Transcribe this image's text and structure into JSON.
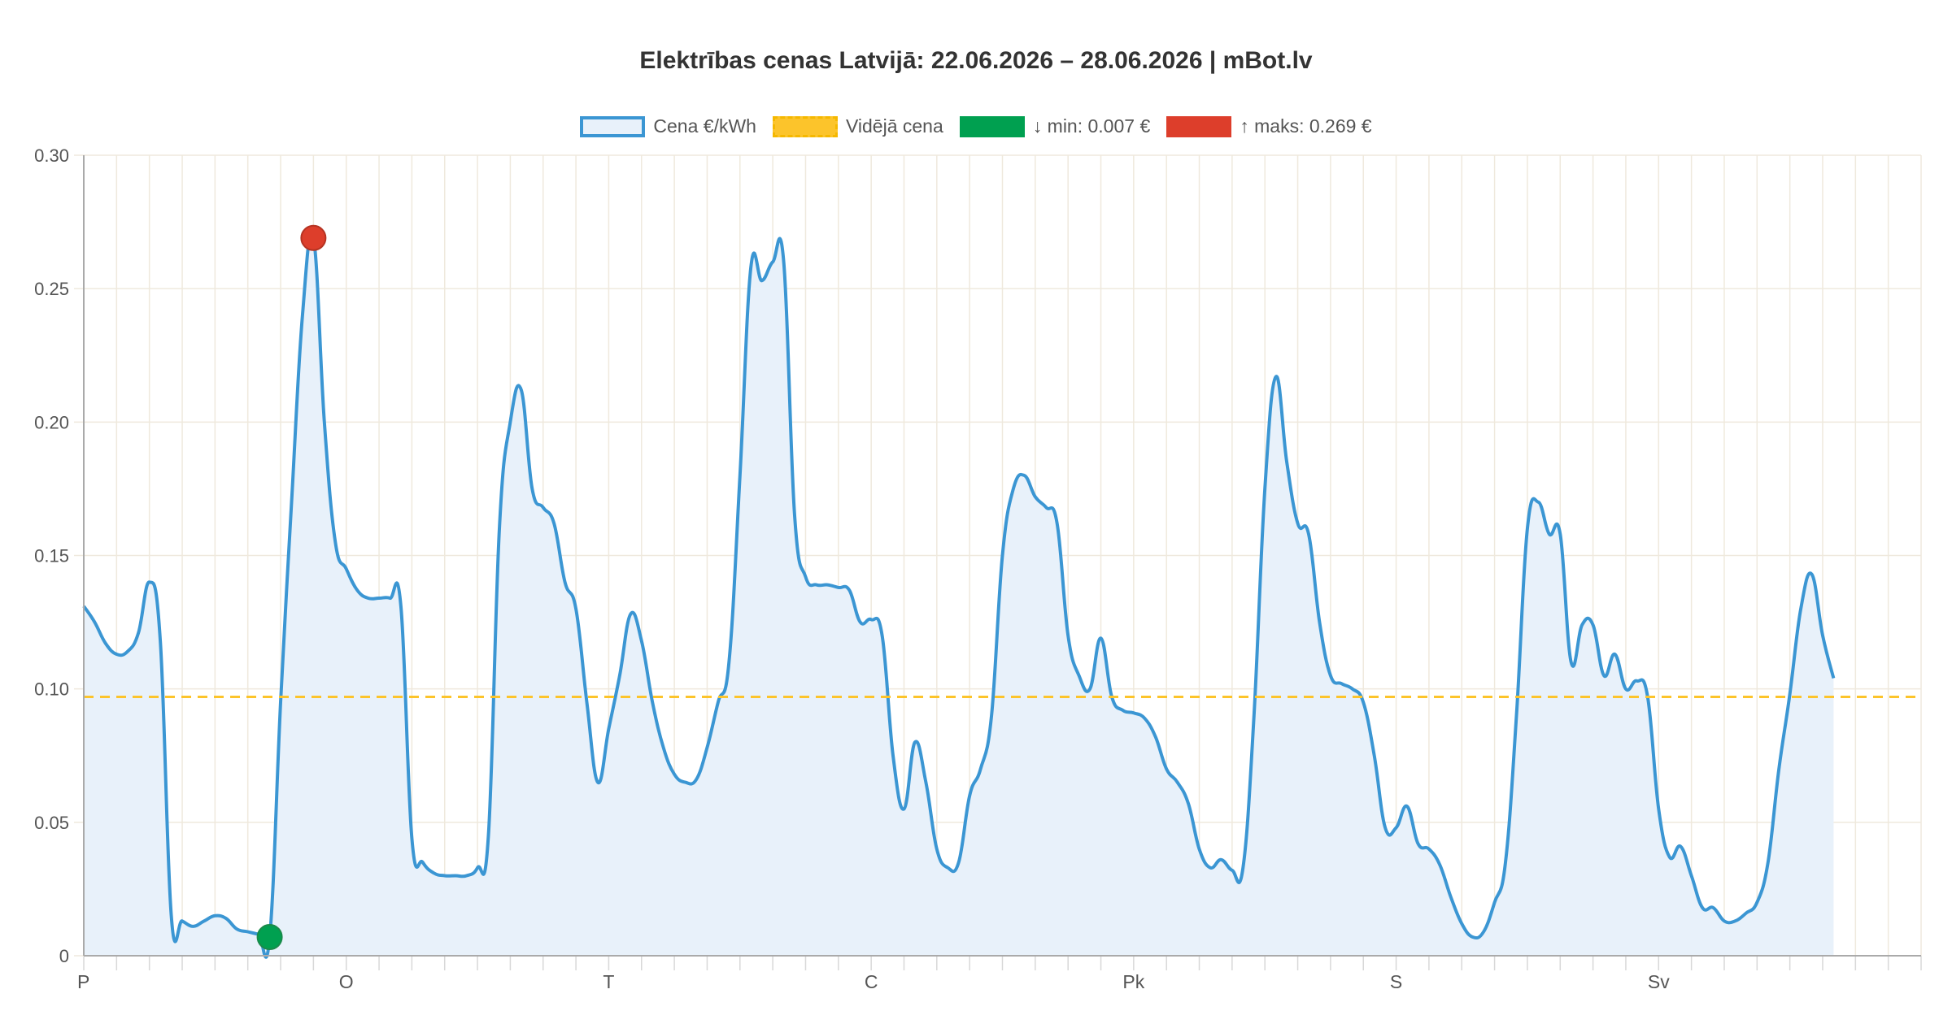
{
  "chart_data": {
    "type": "area",
    "title": "Elektrības cenas Latvijā: 22.06.2026 – 28.06.2026 | mBot.lv",
    "legend": [
      {
        "label": "Cena €/kWh",
        "kind": "series"
      },
      {
        "label": "Vidējā cena",
        "kind": "average"
      },
      {
        "label": "↓ min: 0.007 €",
        "kind": "min"
      },
      {
        "label": "↑ maks: 0.269 €",
        "kind": "max"
      }
    ],
    "legend_position": "top-center",
    "colors": {
      "line": "#3b96d3",
      "fill": "#e8f1fa",
      "average": "#fcc42b",
      "min": "#00a050",
      "max": "#dd3e2b",
      "grid": "#efe9dd",
      "axis": "#aaaaaa",
      "text": "#555555",
      "title": "#333333"
    },
    "y_ticks": [
      "0",
      "0.05",
      "0.10",
      "0.15",
      "0.20",
      "0.25",
      "0.30"
    ],
    "ylim": [
      0,
      0.3
    ],
    "xlim": [
      0,
      168
    ],
    "x_tick_labels": [
      {
        "x": 0,
        "label": "P"
      },
      {
        "x": 24,
        "label": "O"
      },
      {
        "x": 48,
        "label": "T"
      },
      {
        "x": 72,
        "label": "C"
      },
      {
        "x": 96,
        "label": "Pk"
      },
      {
        "x": 120,
        "label": "S"
      },
      {
        "x": 144,
        "label": "Sv"
      }
    ],
    "x_gridline_step": 3,
    "average": 0.097,
    "min_point": {
      "x": 17,
      "y": 0.007
    },
    "max_point": {
      "x": 21,
      "y": 0.269
    },
    "series": [
      {
        "name": "Cena €/kWh",
        "points": [
          [
            0,
            0.131
          ],
          [
            1,
            0.125
          ],
          [
            2,
            0.117
          ],
          [
            3,
            0.113
          ],
          [
            4,
            0.114
          ],
          [
            5,
            0.121
          ],
          [
            6,
            0.14
          ],
          [
            7,
            0.118
          ],
          [
            8,
            0.015
          ],
          [
            9,
            0.013
          ],
          [
            10,
            0.011
          ],
          [
            11,
            0.013
          ],
          [
            12,
            0.015
          ],
          [
            13,
            0.014
          ],
          [
            14,
            0.01
          ],
          [
            15,
            0.009
          ],
          [
            16,
            0.008
          ],
          [
            17,
            0.007
          ],
          [
            18,
            0.095
          ],
          [
            19,
            0.17
          ],
          [
            20,
            0.24
          ],
          [
            21,
            0.269
          ],
          [
            22,
            0.2
          ],
          [
            23,
            0.155
          ],
          [
            24,
            0.145
          ],
          [
            25,
            0.137
          ],
          [
            26,
            0.134
          ],
          [
            27,
            0.134
          ],
          [
            28,
            0.134
          ],
          [
            29,
            0.131
          ],
          [
            30,
            0.044
          ],
          [
            31,
            0.035
          ],
          [
            32,
            0.031
          ],
          [
            33,
            0.03
          ],
          [
            34,
            0.03
          ],
          [
            35,
            0.03
          ],
          [
            36,
            0.033
          ],
          [
            37,
            0.045
          ],
          [
            38,
            0.16
          ],
          [
            39,
            0.2
          ],
          [
            40,
            0.212
          ],
          [
            41,
            0.175
          ],
          [
            42,
            0.168
          ],
          [
            43,
            0.162
          ],
          [
            44,
            0.14
          ],
          [
            45,
            0.13
          ],
          [
            46,
            0.095
          ],
          [
            47,
            0.065
          ],
          [
            48,
            0.085
          ],
          [
            49,
            0.105
          ],
          [
            50,
            0.128
          ],
          [
            51,
            0.118
          ],
          [
            52,
            0.095
          ],
          [
            53,
            0.078
          ],
          [
            54,
            0.068
          ],
          [
            55,
            0.065
          ],
          [
            56,
            0.066
          ],
          [
            57,
            0.078
          ],
          [
            58,
            0.095
          ],
          [
            59,
            0.11
          ],
          [
            60,
            0.18
          ],
          [
            61,
            0.258
          ],
          [
            62,
            0.253
          ],
          [
            63,
            0.26
          ],
          [
            64,
            0.26
          ],
          [
            65,
            0.165
          ],
          [
            66,
            0.142
          ],
          [
            67,
            0.139
          ],
          [
            68,
            0.139
          ],
          [
            69,
            0.138
          ],
          [
            70,
            0.137
          ],
          [
            71,
            0.125
          ],
          [
            72,
            0.126
          ],
          [
            73,
            0.12
          ],
          [
            74,
            0.075
          ],
          [
            75,
            0.055
          ],
          [
            76,
            0.08
          ],
          [
            77,
            0.065
          ],
          [
            78,
            0.04
          ],
          [
            79,
            0.033
          ],
          [
            80,
            0.035
          ],
          [
            81,
            0.06
          ],
          [
            82,
            0.07
          ],
          [
            83,
            0.09
          ],
          [
            84,
            0.15
          ],
          [
            85,
            0.175
          ],
          [
            86,
            0.18
          ],
          [
            87,
            0.172
          ],
          [
            88,
            0.168
          ],
          [
            89,
            0.162
          ],
          [
            90,
            0.12
          ],
          [
            91,
            0.105
          ],
          [
            92,
            0.1
          ],
          [
            93,
            0.119
          ],
          [
            94,
            0.097
          ],
          [
            95,
            0.092
          ],
          [
            96,
            0.091
          ],
          [
            97,
            0.089
          ],
          [
            98,
            0.082
          ],
          [
            99,
            0.07
          ],
          [
            100,
            0.065
          ],
          [
            101,
            0.057
          ],
          [
            102,
            0.04
          ],
          [
            103,
            0.033
          ],
          [
            104,
            0.036
          ],
          [
            105,
            0.032
          ],
          [
            106,
            0.033
          ],
          [
            107,
            0.09
          ],
          [
            108,
            0.175
          ],
          [
            109,
            0.217
          ],
          [
            110,
            0.185
          ],
          [
            111,
            0.162
          ],
          [
            112,
            0.158
          ],
          [
            113,
            0.125
          ],
          [
            114,
            0.105
          ],
          [
            115,
            0.102
          ],
          [
            116,
            0.1
          ],
          [
            117,
            0.095
          ],
          [
            118,
            0.075
          ],
          [
            119,
            0.048
          ],
          [
            120,
            0.048
          ],
          [
            121,
            0.056
          ],
          [
            122,
            0.042
          ],
          [
            123,
            0.04
          ],
          [
            124,
            0.034
          ],
          [
            125,
            0.022
          ],
          [
            126,
            0.012
          ],
          [
            127,
            0.007
          ],
          [
            128,
            0.009
          ],
          [
            129,
            0.02
          ],
          [
            130,
            0.035
          ],
          [
            131,
            0.09
          ],
          [
            132,
            0.16
          ],
          [
            133,
            0.17
          ],
          [
            134,
            0.158
          ],
          [
            135,
            0.158
          ],
          [
            136,
            0.11
          ],
          [
            137,
            0.124
          ],
          [
            138,
            0.124
          ],
          [
            139,
            0.105
          ],
          [
            140,
            0.113
          ],
          [
            141,
            0.1
          ],
          [
            142,
            0.103
          ],
          [
            143,
            0.097
          ],
          [
            144,
            0.055
          ],
          [
            145,
            0.037
          ],
          [
            146,
            0.041
          ],
          [
            147,
            0.03
          ],
          [
            148,
            0.018
          ],
          [
            149,
            0.018
          ],
          [
            150,
            0.013
          ],
          [
            151,
            0.013
          ],
          [
            152,
            0.016
          ],
          [
            153,
            0.02
          ],
          [
            154,
            0.035
          ],
          [
            155,
            0.07
          ],
          [
            156,
            0.098
          ],
          [
            157,
            0.13
          ],
          [
            158,
            0.143
          ],
          [
            159,
            0.12
          ],
          [
            160,
            0.104
          ]
        ]
      }
    ]
  }
}
